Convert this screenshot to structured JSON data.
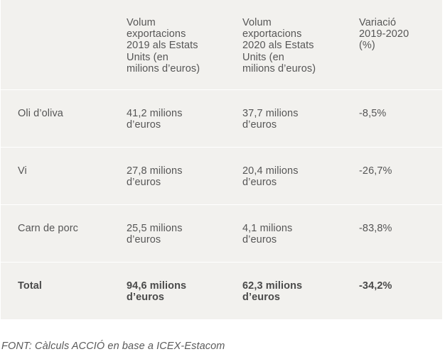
{
  "table": {
    "headers": [
      "",
      "Volum\nexportacions\n2019 als Estats\nUnits (en\nmilions d’euros)",
      "Volum\nexportacions\n2020 als Estats\nUnits (en\nmilions d’euros)",
      "Variació\n2019-2020\n(%)"
    ],
    "rows": [
      {
        "product": "Oli d’oliva",
        "v2019": "41,2 milions\nd’euros",
        "v2020": "37,7 milions\nd’euros",
        "change": "-8,5%"
      },
      {
        "product": "Vi",
        "v2019": "27,8 milions\nd’euros",
        "v2020": "20,4 milions\nd’euros",
        "change": "-26,7%"
      },
      {
        "product": "Carn de porc",
        "v2019": "25,5 milions\nd’euros",
        "v2020": "4,1 milions\nd’euros",
        "change": "-83,8%"
      }
    ],
    "total": {
      "label": "Total",
      "v2019": "94,6 milions\nd’euros",
      "v2020": "62,3 milions\nd’euros",
      "change": "-34,2%"
    }
  },
  "source": "FONT: Càlculs ACCIÓ en base a ICEX-Estacom",
  "colors": {
    "table_background": "#f2f1ee",
    "row_separator": "#ffffff",
    "text": "#565656"
  }
}
